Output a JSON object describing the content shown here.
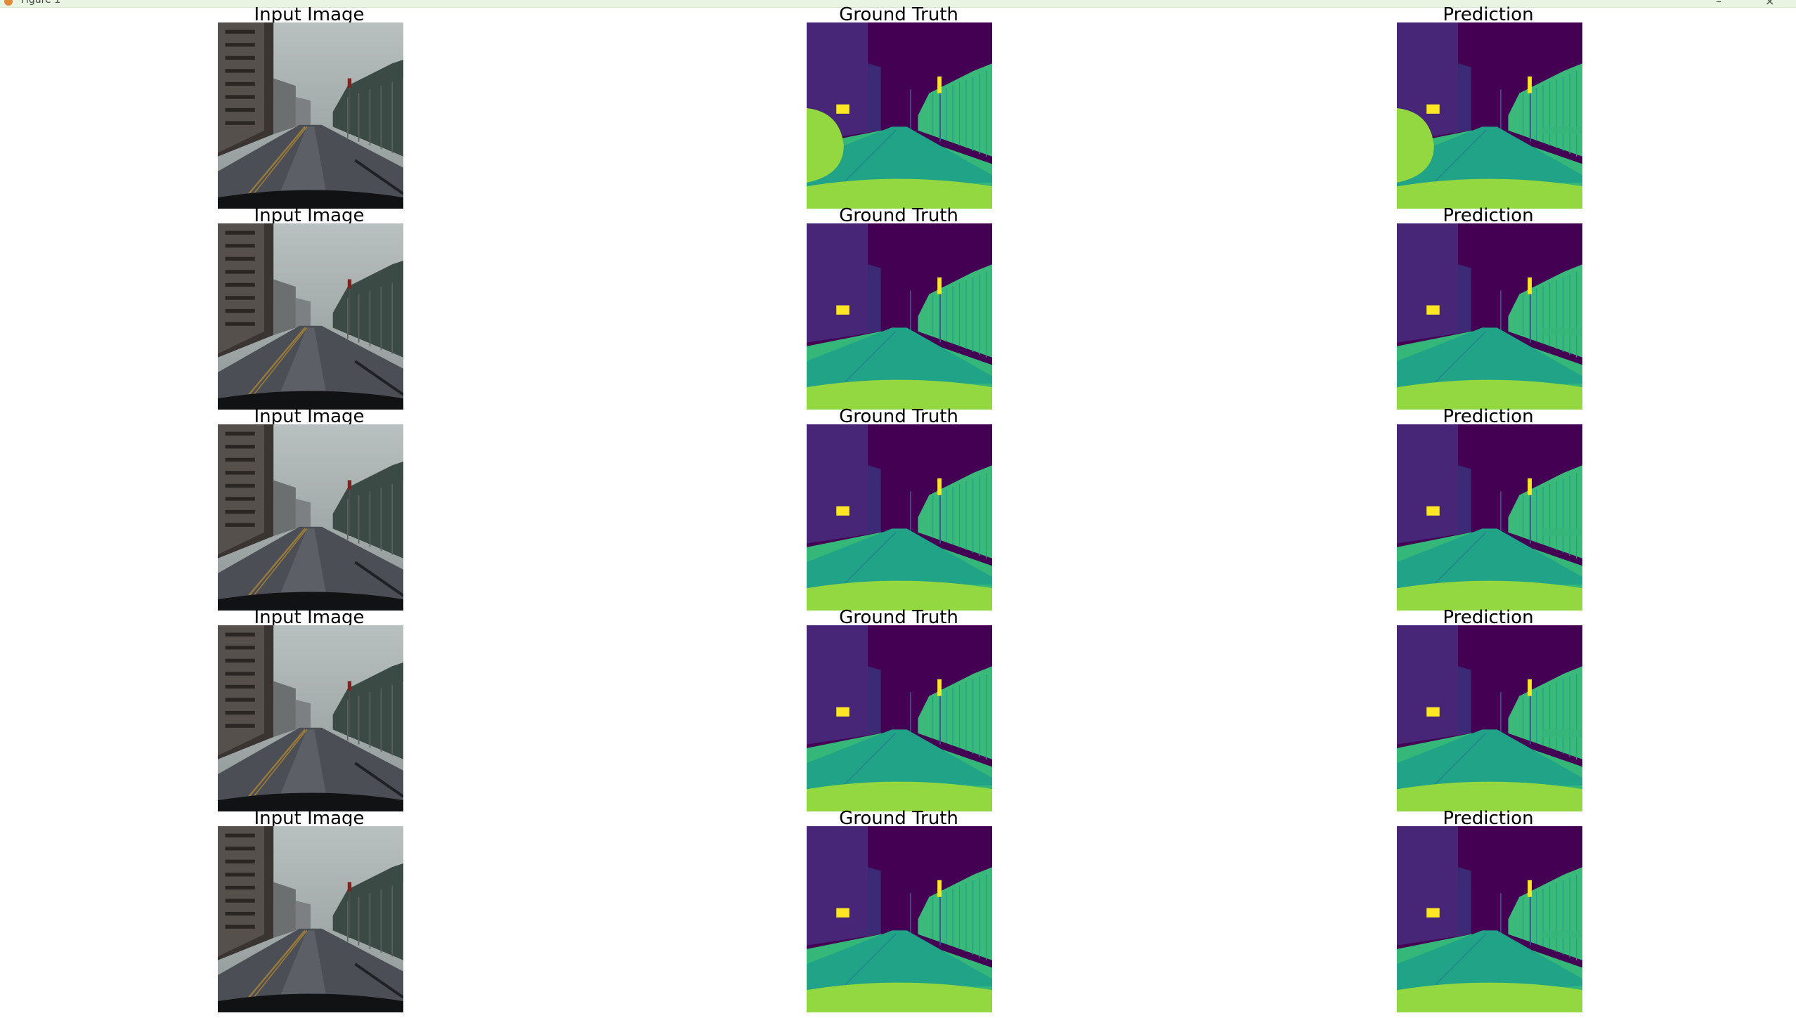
{
  "window": {
    "title": "Figure 1"
  },
  "figure": {
    "column_titles": [
      "Input Image",
      "Ground Truth",
      "Prediction"
    ],
    "rows": 5,
    "segmentation_palette": {
      "sky": "#440154",
      "building": "#482677",
      "building_dark": "#3b2a75",
      "road": "#20a386",
      "sidewalk": "#35b779",
      "car_hood": "#93d741",
      "vegetation": "#3ab97a",
      "pole": "#39568c",
      "traffic_light": "#fde725",
      "road_line": "#26828e"
    }
  }
}
